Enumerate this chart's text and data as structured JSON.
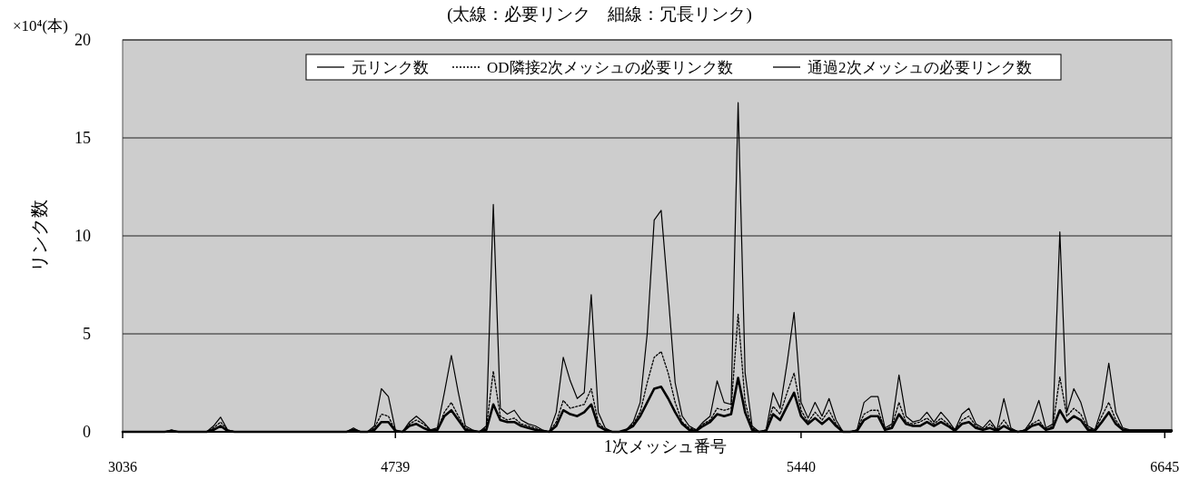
{
  "chart_data": {
    "type": "line",
    "title": "(太線：必要リンク　細線：冗長リンク)",
    "xlabel": "1次メッシュ番号",
    "ylabel": "リンク数",
    "annotations": [
      "×10⁴(本)"
    ],
    "categories": [
      "3036",
      null,
      null,
      null,
      null,
      null,
      null,
      null,
      null,
      null,
      null,
      null,
      null,
      null,
      null,
      null,
      null,
      null,
      null,
      null,
      null,
      null,
      null,
      null,
      null,
      null,
      null,
      null,
      null,
      null,
      null,
      null,
      null,
      null,
      null,
      null,
      null,
      null,
      null,
      "4739",
      null,
      null,
      null,
      null,
      null,
      null,
      null,
      null,
      null,
      null,
      null,
      null,
      null,
      null,
      null,
      null,
      null,
      null,
      null,
      null,
      null,
      null,
      null,
      null,
      null,
      null,
      null,
      null,
      null,
      null,
      null,
      null,
      null,
      null,
      null,
      null,
      null,
      null,
      null,
      null,
      null,
      null,
      null,
      null,
      null,
      null,
      null,
      null,
      null,
      null,
      null,
      null,
      null,
      null,
      null,
      null,
      null,
      "5440",
      null,
      null,
      null,
      null,
      null,
      null,
      null,
      null,
      null,
      null,
      null,
      null,
      null,
      null,
      null,
      null,
      null,
      null,
      null,
      null,
      null,
      null,
      null,
      null,
      null,
      null,
      null,
      null,
      null,
      null,
      null,
      null,
      null,
      null,
      null,
      null,
      null,
      null,
      null,
      null,
      null,
      null,
      null,
      null,
      null,
      null,
      null,
      null,
      null,
      null,
      null,
      "6645",
      null
    ],
    "series": [
      {
        "name": "元リンク数",
        "color": "#000000",
        "line_style": "solid",
        "values": [
          0,
          0,
          0,
          0,
          0,
          0,
          0,
          0.1,
          0,
          0,
          0,
          0,
          0,
          0.3,
          0.75,
          0.1,
          0,
          0,
          0,
          0,
          0,
          0,
          0,
          0,
          0,
          0,
          0,
          0,
          0,
          0,
          0,
          0,
          0,
          0.2,
          0,
          0,
          0.3,
          2.2,
          1.8,
          0.1,
          0,
          0.5,
          0.8,
          0.5,
          0.1,
          0.2,
          2.0,
          3.9,
          2.0,
          0.3,
          0.1,
          0,
          0.3,
          11.6,
          1.2,
          0.9,
          1.1,
          0.6,
          0.4,
          0.3,
          0.1,
          0,
          1.0,
          3.8,
          2.6,
          1.7,
          2.0,
          7.0,
          1.0,
          0.2,
          0,
          0,
          0.1,
          0.5,
          1.5,
          5.0,
          10.8,
          11.3,
          7.0,
          2.5,
          0.8,
          0.3,
          0.1,
          0.5,
          0.8,
          2.6,
          1.5,
          1.4,
          16.8,
          3.0,
          0.3,
          0,
          0.1,
          2.0,
          1.2,
          3.5,
          6.1,
          1.5,
          0.7,
          1.5,
          0.8,
          1.7,
          0.6,
          0,
          0,
          0.1,
          1.5,
          1.8,
          1.8,
          0.2,
          0.4,
          2.9,
          0.8,
          0.5,
          0.6,
          1.0,
          0.5,
          1.0,
          0.6,
          0.1,
          0.9,
          1.2,
          0.4,
          0.2,
          0.6,
          0.1,
          1.7,
          0.2,
          0,
          0.1,
          0.6,
          1.6,
          0.2,
          0.4,
          10.2,
          1.0,
          2.2,
          1.5,
          0.3,
          0.1,
          1.2,
          3.5,
          1.0,
          0.2,
          0.1,
          0.1,
          0.1,
          0.1,
          0.1,
          0.1,
          0.1
        ]
      },
      {
        "name": "OD隣接2次メッシュの必要リンク数",
        "color": "#000000",
        "line_style": "dotted",
        "values": [
          0,
          0,
          0,
          0,
          0,
          0,
          0,
          0.05,
          0,
          0,
          0,
          0,
          0,
          0.2,
          0.5,
          0.1,
          0,
          0,
          0,
          0,
          0,
          0,
          0,
          0,
          0,
          0,
          0,
          0,
          0,
          0,
          0,
          0,
          0,
          0.1,
          0,
          0,
          0.2,
          0.9,
          0.8,
          0.05,
          0,
          0.4,
          0.6,
          0.4,
          0.1,
          0.1,
          1.0,
          1.5,
          0.8,
          0.2,
          0.05,
          0,
          0.2,
          3.1,
          0.8,
          0.6,
          0.7,
          0.4,
          0.3,
          0.2,
          0.05,
          0,
          0.5,
          1.6,
          1.2,
          1.3,
          1.4,
          2.2,
          0.5,
          0.1,
          0,
          0,
          0.1,
          0.4,
          1.0,
          2.5,
          3.8,
          4.1,
          3.0,
          1.5,
          0.5,
          0.2,
          0.1,
          0.4,
          0.6,
          1.2,
          1.1,
          1.2,
          6.0,
          1.5,
          0.2,
          0,
          0.1,
          1.3,
          0.9,
          2.0,
          3.0,
          1.1,
          0.5,
          1.0,
          0.6,
          1.1,
          0.4,
          0,
          0,
          0.1,
          0.9,
          1.1,
          1.1,
          0.1,
          0.3,
          1.5,
          0.5,
          0.4,
          0.5,
          0.7,
          0.4,
          0.7,
          0.4,
          0.1,
          0.6,
          0.8,
          0.3,
          0.1,
          0.4,
          0.1,
          0.6,
          0.1,
          0,
          0.1,
          0.4,
          0.6,
          0.1,
          0.3,
          2.8,
          0.8,
          1.2,
          0.9,
          0.2,
          0.1,
          0.8,
          1.5,
          0.6,
          0.1,
          0.05,
          0.05,
          0.05,
          0.05,
          0.05,
          0.05,
          0.05
        ]
      },
      {
        "name": "通過2次メッシュの必要リンク数",
        "color": "#000000",
        "line_style": "solid",
        "values": [
          0,
          0,
          0,
          0,
          0,
          0,
          0,
          0.05,
          0,
          0,
          0,
          0,
          0,
          0.1,
          0.3,
          0.05,
          0,
          0,
          0,
          0,
          0,
          0,
          0,
          0,
          0,
          0,
          0,
          0,
          0,
          0,
          0,
          0,
          0,
          0.1,
          0,
          0,
          0.1,
          0.5,
          0.5,
          0.05,
          0,
          0.3,
          0.4,
          0.2,
          0.05,
          0.1,
          0.8,
          1.1,
          0.6,
          0.1,
          0.05,
          0,
          0.1,
          1.4,
          0.6,
          0.5,
          0.5,
          0.3,
          0.2,
          0.1,
          0.05,
          0,
          0.3,
          1.1,
          0.9,
          0.8,
          1.0,
          1.4,
          0.3,
          0.1,
          0,
          0,
          0.1,
          0.3,
          0.8,
          1.5,
          2.2,
          2.3,
          1.7,
          1.0,
          0.4,
          0.1,
          0.05,
          0.3,
          0.5,
          0.9,
          0.8,
          0.9,
          2.75,
          1.0,
          0.1,
          0,
          0.05,
          0.9,
          0.6,
          1.3,
          2.0,
          0.8,
          0.4,
          0.7,
          0.4,
          0.7,
          0.3,
          0,
          0,
          0.05,
          0.6,
          0.8,
          0.8,
          0.1,
          0.2,
          0.9,
          0.4,
          0.3,
          0.3,
          0.5,
          0.3,
          0.5,
          0.3,
          0.05,
          0.4,
          0.5,
          0.2,
          0.1,
          0.2,
          0.05,
          0.3,
          0.1,
          0,
          0.05,
          0.3,
          0.4,
          0.1,
          0.2,
          1.1,
          0.5,
          0.8,
          0.6,
          0.1,
          0.05,
          0.5,
          1.0,
          0.4,
          0.1,
          0.05,
          0.05,
          0.05,
          0.05,
          0.05,
          0.05,
          0.05
        ]
      }
    ],
    "ylim": [
      0,
      20
    ],
    "yticks": [
      0,
      5,
      10,
      15,
      20
    ],
    "grid": "y",
    "legend": "top"
  }
}
